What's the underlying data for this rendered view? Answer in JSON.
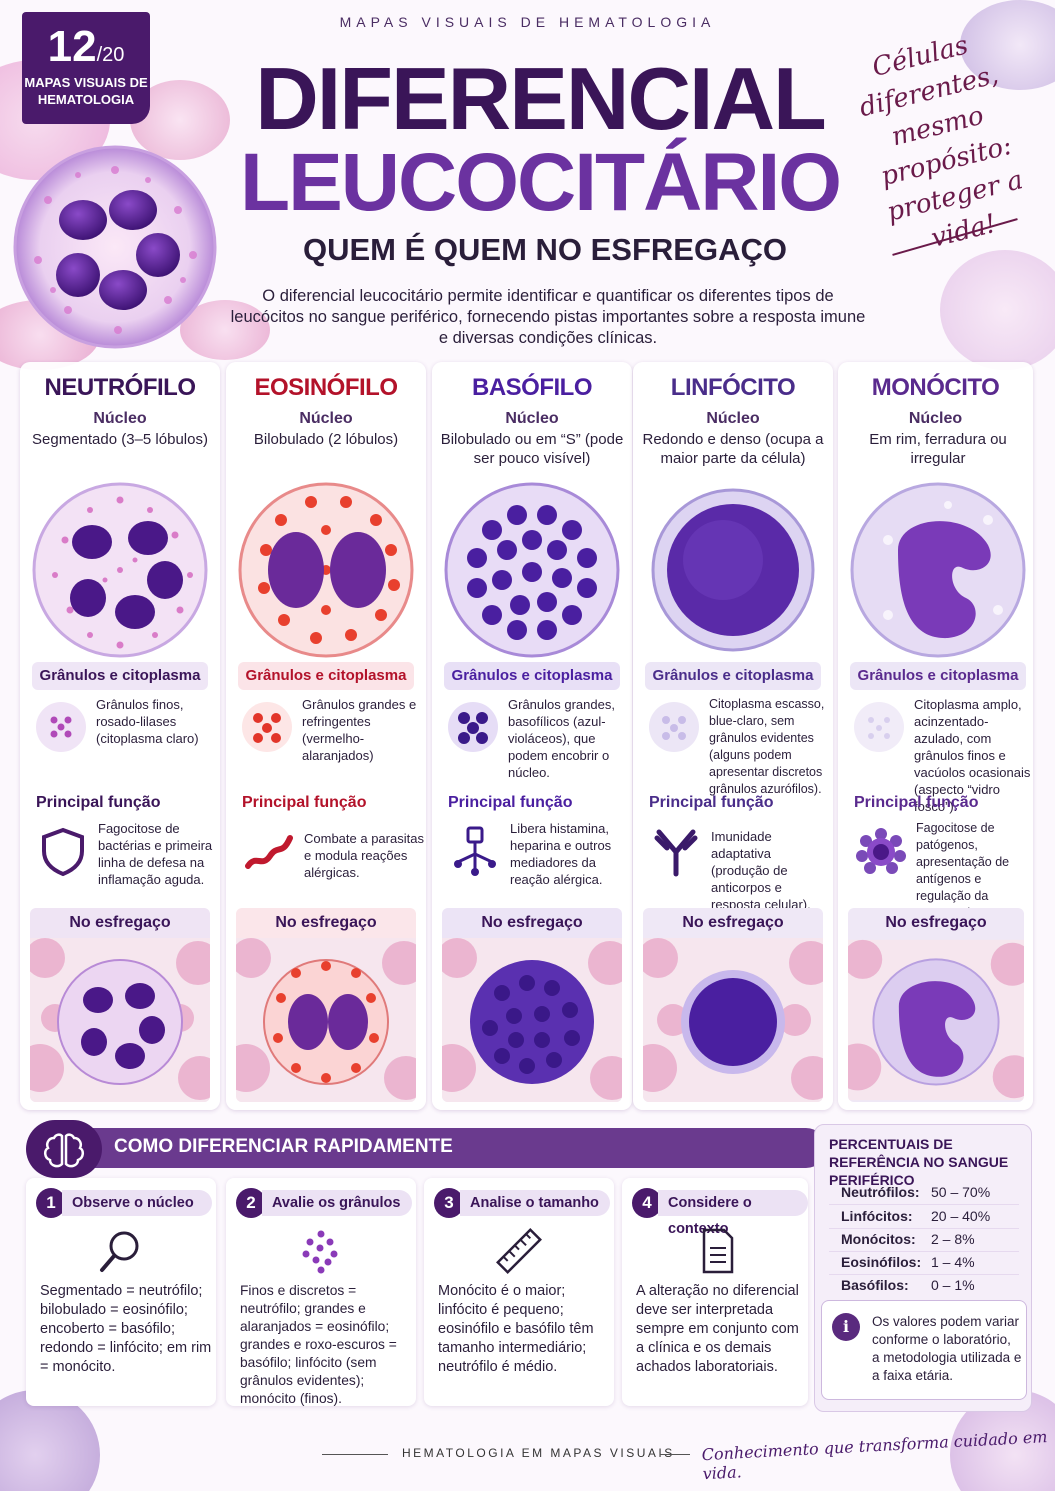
{
  "badge": {
    "number": "12",
    "total": "/20",
    "label": "MAPAS VISUAIS DE HEMATOLOGIA"
  },
  "header": {
    "supertitle": "MAPAS VISUAIS DE HEMATOLOGIA",
    "title_line1": "DIFERENCIAL",
    "title_line2": "LEUCOCITÁRIO",
    "subtitle": "QUEM É QUEM NO ESFREGAÇO",
    "intro": "O diferencial leucocitário permite identificar e quantificar os diferentes tipos de leucócitos no sangue periférico, fornecendo pistas importantes sobre a resposta imune e diversas condições clínicas."
  },
  "slogan": "Células diferentes, mesmo propósito: proteger a vida!",
  "labels": {
    "nucleus": "Núcleo",
    "granules": "Grânulos e citoplasma",
    "function": "Principal função",
    "smear": "No esfregaço"
  },
  "cells": [
    {
      "name": "NEUTRÓFILO",
      "color": "#3a1558",
      "nucleus": "Segmentado (3–5 lóbulos)",
      "granules": "Grânulos finos, rosado-lilases (citoplasma claro)",
      "function": "Fagocitose de bactérias e primeira linha de defesa na inflamação aguda.",
      "icon": "shield-icon"
    },
    {
      "name": "EOSINÓFILO",
      "color": "#b3122a",
      "nucleus": "Bilobulado (2 lóbulos)",
      "granules": "Grânulos grandes e refringentes (vermelho-alaranjados)",
      "function": "Combate a parasitas e modula reações alérgicas.",
      "icon": "parasite-worm-icon"
    },
    {
      "name": "BASÓFILO",
      "color": "#4a1fa0",
      "nucleus": "Bilobulado ou em “S” (pode ser pouco visível)",
      "granules": "Grânulos grandes, basofílicos (azul-violáceos), que podem encobrir o núcleo.",
      "function": "Libera histamina, heparina e outros mediadores da reação alérgica.",
      "icon": "histamine-release-icon"
    },
    {
      "name": "LINFÓCITO",
      "color": "#4a2d8a",
      "nucleus": "Redondo e denso (ocupa a maior parte da célula)",
      "granules": "Citoplasma escasso, blue-claro, sem grânulos evidentes (alguns podem apresentar discretos grânulos azurófilos).",
      "function": "Imunidade adaptativa (produção de anticorpos e resposta celular).",
      "icon": "antibody-icon"
    },
    {
      "name": "MONÓCITO",
      "color": "#5a2a8e",
      "nucleus": "Em rim, ferradura ou irregular",
      "granules": "Citoplasma amplo, acinzentado-azulado, com grânulos finos e vacúolos ocasionais (aspecto “vidro fosco”).",
      "function": "Fagocitose de patógenos, apresentação de antígenos e regulação da resposta imune.",
      "icon": "phagocyte-icon"
    }
  ],
  "howto": {
    "title": "COMO DIFERENCIAR RAPIDAMENTE",
    "steps": [
      {
        "n": "1",
        "title": "Observe o núcleo",
        "text": "Segmentado = neutrófilo; bilobulado = eosinófilo; encoberto = basófilo; redondo = linfócito; em rim = monócito."
      },
      {
        "n": "2",
        "title": "Avalie os grânulos",
        "text": "Finos e discretos = neutrófilo; grandes e alaranjados = eosinófilo; grandes e roxo-escuros = basófilo; linfócito (sem grânulos evidentes); monócito (finos)."
      },
      {
        "n": "3",
        "title": "Analise o tamanho",
        "text": "Monócito é o maior; linfócito é pequeno; eosinófilo e basófilo têm tamanho intermediário; neutrófilo é médio."
      },
      {
        "n": "4",
        "title": "Considere o contexto",
        "text": "A alteração no diferencial deve ser interpretada sempre em conjunto com a clínica e os demais achados laboratoriais."
      }
    ]
  },
  "reference": {
    "title": "PERCENTUAIS DE REFERÊNCIA NO SANGUE PERIFÉRICO",
    "rows": [
      {
        "label": "Neutrófilos:",
        "value": "50 – 70%"
      },
      {
        "label": "Linfócitos:",
        "value": "20 – 40%"
      },
      {
        "label": "Monócitos:",
        "value": "2 – 8%"
      },
      {
        "label": "Eosinófilos:",
        "value": "1 – 4%"
      },
      {
        "label": "Basófilos:",
        "value": "0 – 1%"
      }
    ],
    "note": "Os valores podem variar conforme o laboratório, a metodologia utilizada e a faixa etária."
  },
  "footer": {
    "text": "HEMATOLOGIA EM MAPAS VISUAIS",
    "slogan": "Conhecimento que transforma cuidado em vida."
  }
}
